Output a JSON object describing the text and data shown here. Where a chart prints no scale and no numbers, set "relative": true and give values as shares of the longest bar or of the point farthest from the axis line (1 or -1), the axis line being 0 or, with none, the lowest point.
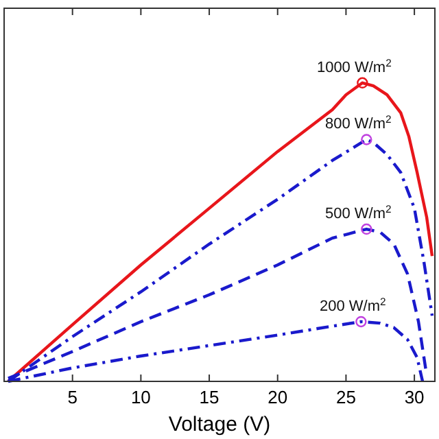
{
  "chart_data": {
    "type": "line",
    "relative": true,
    "xlabel": "Voltage (V)",
    "xlim": [
      0,
      31.5
    ],
    "xticks": [
      5,
      10,
      15,
      20,
      25,
      30
    ],
    "grid": false,
    "series": [
      {
        "color": "#e8161b",
        "line_style": "solid",
        "x": [
          0.3,
          5,
          10,
          15,
          20,
          24,
          25,
          26.2,
          27,
          28,
          29,
          29.6,
          30.2,
          30.9,
          31.3
        ],
        "values": [
          0,
          0.19,
          0.39,
          0.58,
          0.77,
          0.91,
          0.96,
          1.0,
          0.99,
          0.96,
          0.9,
          0.82,
          0.7,
          0.55,
          0.42
        ]
      },
      {
        "color": "#1a1acc",
        "line_style": "dashdot",
        "x": [
          0.3,
          5,
          10,
          15,
          20,
          24,
          26.5,
          27,
          28,
          29,
          30,
          30.7,
          31.3
        ],
        "values": [
          0,
          0.15,
          0.3,
          0.46,
          0.61,
          0.74,
          0.81,
          0.8,
          0.76,
          0.7,
          0.58,
          0.4,
          0.22
        ]
      },
      {
        "color": "#1a1acc",
        "line_style": "dashed",
        "x": [
          0.3,
          5,
          10,
          15,
          20,
          24,
          26.5,
          27.5,
          28.5,
          29.5,
          30.3,
          30.9
        ],
        "values": [
          0.01,
          0.1,
          0.2,
          0.29,
          0.39,
          0.48,
          0.51,
          0.5,
          0.46,
          0.36,
          0.2,
          0.02
        ]
      },
      {
        "color": "#1a1acc",
        "line_style": "dashdot",
        "x": [
          0.3,
          5,
          10,
          15,
          20,
          24,
          26.1,
          27.5,
          28.5,
          29.5,
          30.2,
          30.6
        ],
        "values": [
          0,
          0.045,
          0.085,
          0.12,
          0.155,
          0.185,
          0.2,
          0.195,
          0.18,
          0.14,
          0.08,
          0
        ]
      },
      {
        "type": "scatter",
        "marker": "circle",
        "x": [
          26.2,
          26.5,
          26.5,
          26.1
        ],
        "values": [
          1.0,
          0.81,
          0.51,
          0.2
        ],
        "colors": [
          "#e8161b",
          "#c040e0",
          "#c040e0",
          "#c040e0"
        ]
      }
    ],
    "annotations": [
      {
        "text": "1000 W/m$^{2}$",
        "x": 26.2,
        "y": 1.0
      },
      {
        "text": "800 W/m$^{2}$",
        "x": 26.5,
        "y": 0.81
      },
      {
        "text": "500 W/m$^{2}$",
        "x": 26.5,
        "y": 0.51
      },
      {
        "text": "200 W/m$^{2}$",
        "x": 26.1,
        "y": 0.2
      }
    ]
  }
}
